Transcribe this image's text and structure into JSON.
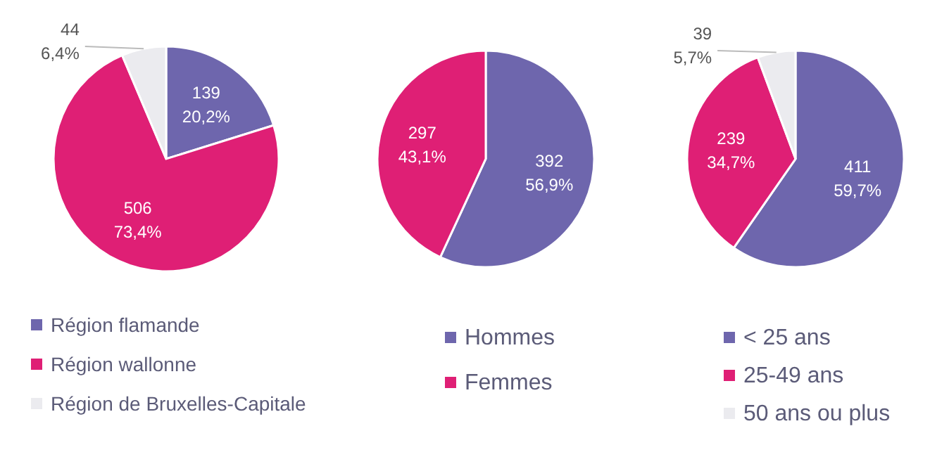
{
  "chart_data": [
    {
      "type": "pie",
      "categories": [
        "Région flamande",
        "Région wallonne",
        "Région de Bruxelles-Capitale"
      ],
      "values": [
        139,
        506,
        44
      ],
      "colors": [
        "#6e66ad",
        "#df1f75",
        "#ebebef"
      ],
      "value_labels": [
        "139\n20,2%",
        "506\n73,4%",
        "44\n6,4%"
      ],
      "legend": "bottom"
    },
    {
      "type": "pie",
      "categories": [
        "Hommes",
        "Femmes"
      ],
      "values": [
        392,
        297
      ],
      "colors": [
        "#6e66ad",
        "#df1f75"
      ],
      "value_labels": [
        "392\n56,9%",
        "297\n43,1%"
      ],
      "legend": "bottom"
    },
    {
      "type": "pie",
      "categories": [
        "< 25 ans",
        "25-49 ans",
        "50 ans ou plus"
      ],
      "values": [
        411,
        239,
        39
      ],
      "colors": [
        "#6e66ad",
        "#df1f75",
        "#ebebef"
      ],
      "value_labels": [
        "411\n59,7%",
        "239\n34,7%",
        "39\n5,7%"
      ],
      "legend": "bottom"
    }
  ]
}
